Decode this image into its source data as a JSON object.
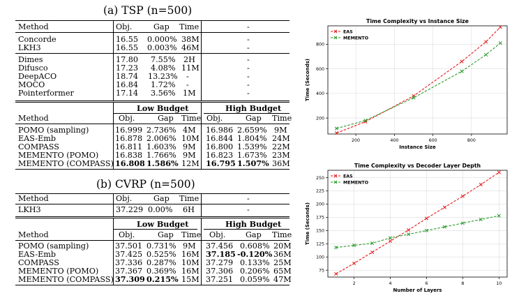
{
  "tsp": {
    "caption": "(a) TSP (n=500)",
    "header": {
      "method": "Method",
      "obj": "Obj.",
      "gap": "Gap",
      "time": "Time",
      "right": "-"
    },
    "exact": [
      {
        "method": "Concorde",
        "obj": "16.55",
        "gap": "0.000%",
        "time": "38M",
        "right": "-"
      },
      {
        "method": "LKH3",
        "obj": "16.55",
        "gap": "0.003%",
        "time": "46M",
        "right": "-"
      }
    ],
    "learned": [
      {
        "method": "Dimes",
        "obj": "17.80",
        "gap": "7.55%",
        "time": "2H",
        "right": "-"
      },
      {
        "method": "Difusco",
        "obj": "17.23",
        "gap": "4.08%",
        "time": "11M",
        "right": "-"
      },
      {
        "method": "DeepACO",
        "obj": "18.74",
        "gap": "13.23%",
        "time": "-",
        "right": "-"
      },
      {
        "method": "MOCO",
        "obj": "16.84",
        "gap": "1.72%",
        "time": "-",
        "right": "-"
      },
      {
        "method": "Pointerformer",
        "obj": "17.14",
        "gap": "3.56%",
        "time": "1M",
        "right": "-"
      }
    ],
    "budget_header": {
      "low": "Low Budget",
      "high": "High Budget",
      "method": "Method",
      "obj": "Obj.",
      "gap": "Gap",
      "time": "Time"
    },
    "budget_rows": [
      {
        "method": "POMO (sampling)",
        "lo": "16.999",
        "lg": "2.736%",
        "lt": "4M",
        "ho": "16.986",
        "hg": "2.659%",
        "ht": "9M"
      },
      {
        "method": "EAS-Emb",
        "lo": "16.878",
        "lg": "2.006%",
        "lt": "10M",
        "ho": "16.844",
        "hg": "1.804%",
        "ht": "24M"
      },
      {
        "method": "COMPASS",
        "lo": "16.811",
        "lg": "1.603%",
        "lt": "9M",
        "ho": "16.800",
        "hg": "1.539%",
        "ht": "22M"
      },
      {
        "method": "MEMENTO (POMO)",
        "lo": "16.838",
        "lg": "1.766%",
        "lt": "9M",
        "ho": "16.823",
        "hg": "1.673%",
        "ht": "23M"
      },
      {
        "method": "MEMENTO (COMPASS)",
        "lo": "16.808",
        "lg": "1.586%",
        "lt": "12M",
        "ho": "16.795",
        "hg": "1.507%",
        "ht": "36M"
      }
    ]
  },
  "cvrp": {
    "caption": "(b) CVRP (n=500)",
    "header": {
      "method": "Method",
      "obj": "Obj.",
      "gap": "Gap",
      "time": "Time",
      "right": "-"
    },
    "exact": [
      {
        "method": "LKH3",
        "obj": "37.229",
        "gap": "0.00%",
        "time": "6H",
        "right": "-"
      }
    ],
    "budget_header": {
      "low": "Low Budget",
      "high": "High Budget",
      "method": "Method",
      "obj": "Obj.",
      "gap": "Gap",
      "time": "Time"
    },
    "budget_rows": [
      {
        "method": "POMO (sampling)",
        "lo": "37.501",
        "lg": "0.731%",
        "lt": "9M",
        "ho": "37.456",
        "hg": "0.608%",
        "ht": "20M"
      },
      {
        "method": "EAS-Emb",
        "lo": "37.425",
        "lg": "0.525%",
        "lt": "16M",
        "ho": "37.185",
        "hg": "-0.120%",
        "ht": "36M"
      },
      {
        "method": "COMPASS",
        "lo": "37.336",
        "lg": "0.287%",
        "lt": "10M",
        "ho": "37.279",
        "hg": "0.133%",
        "ht": "25M"
      },
      {
        "method": "MEMENTO (POMO)",
        "lo": "37.367",
        "lg": "0.369%",
        "lt": "16M",
        "ho": "37.306",
        "hg": "0.206%",
        "ht": "65M"
      },
      {
        "method": "MEMENTO (COMPASS)",
        "lo": "37.309",
        "lg": "0.215%",
        "lt": "15M",
        "ho": "37.251",
        "hg": "0.059%",
        "ht": "47M"
      }
    ]
  },
  "chart_data": [
    {
      "type": "line",
      "title": "Time Complexity vs Instance Size",
      "xlabel": "Instance Size",
      "ylabel": "Time (Seconds)",
      "xlim": [
        55,
        985
      ],
      "ylim": [
        70,
        950
      ],
      "xticks": [
        200,
        400,
        600,
        800
      ],
      "yticks": [
        200,
        400,
        600,
        800
      ],
      "legend_position": "top-left",
      "grid": true,
      "series": [
        {
          "name": "EAS",
          "color": "#e8191a",
          "x": [
            100,
            250,
            500,
            750,
            875,
            950
          ],
          "values": [
            78,
            170,
            380,
            660,
            820,
            940
          ]
        },
        {
          "name": "MEMENTO",
          "color": "#2a9a2a",
          "x": [
            100,
            250,
            500,
            750,
            875,
            950
          ],
          "values": [
            115,
            180,
            365,
            580,
            715,
            810
          ]
        }
      ]
    },
    {
      "type": "line",
      "title": "Time Complexity vs Decoder Layer Depth",
      "xlabel": "Number of Layers",
      "ylabel": "Time (Seconds)",
      "xlim": [
        0.55,
        10.45
      ],
      "ylim": [
        62,
        264
      ],
      "xticks": [
        2,
        4,
        6,
        8,
        10
      ],
      "yticks": [
        75,
        100,
        125,
        150,
        175,
        200,
        225,
        250
      ],
      "legend_position": "top-left",
      "grid": true,
      "series": [
        {
          "name": "EAS",
          "color": "#e8191a",
          "x": [
            1,
            2,
            3,
            4,
            5,
            6,
            7,
            8,
            9,
            10
          ],
          "values": [
            68,
            88,
            109,
            130,
            151,
            173,
            194,
            215,
            237,
            260
          ]
        },
        {
          "name": "MEMENTO",
          "color": "#2a9a2a",
          "x": [
            1,
            2,
            3,
            4,
            5,
            6,
            7,
            8,
            9,
            10
          ],
          "values": [
            118,
            122,
            126,
            136,
            143,
            150,
            157,
            164,
            171,
            178
          ]
        }
      ]
    }
  ]
}
